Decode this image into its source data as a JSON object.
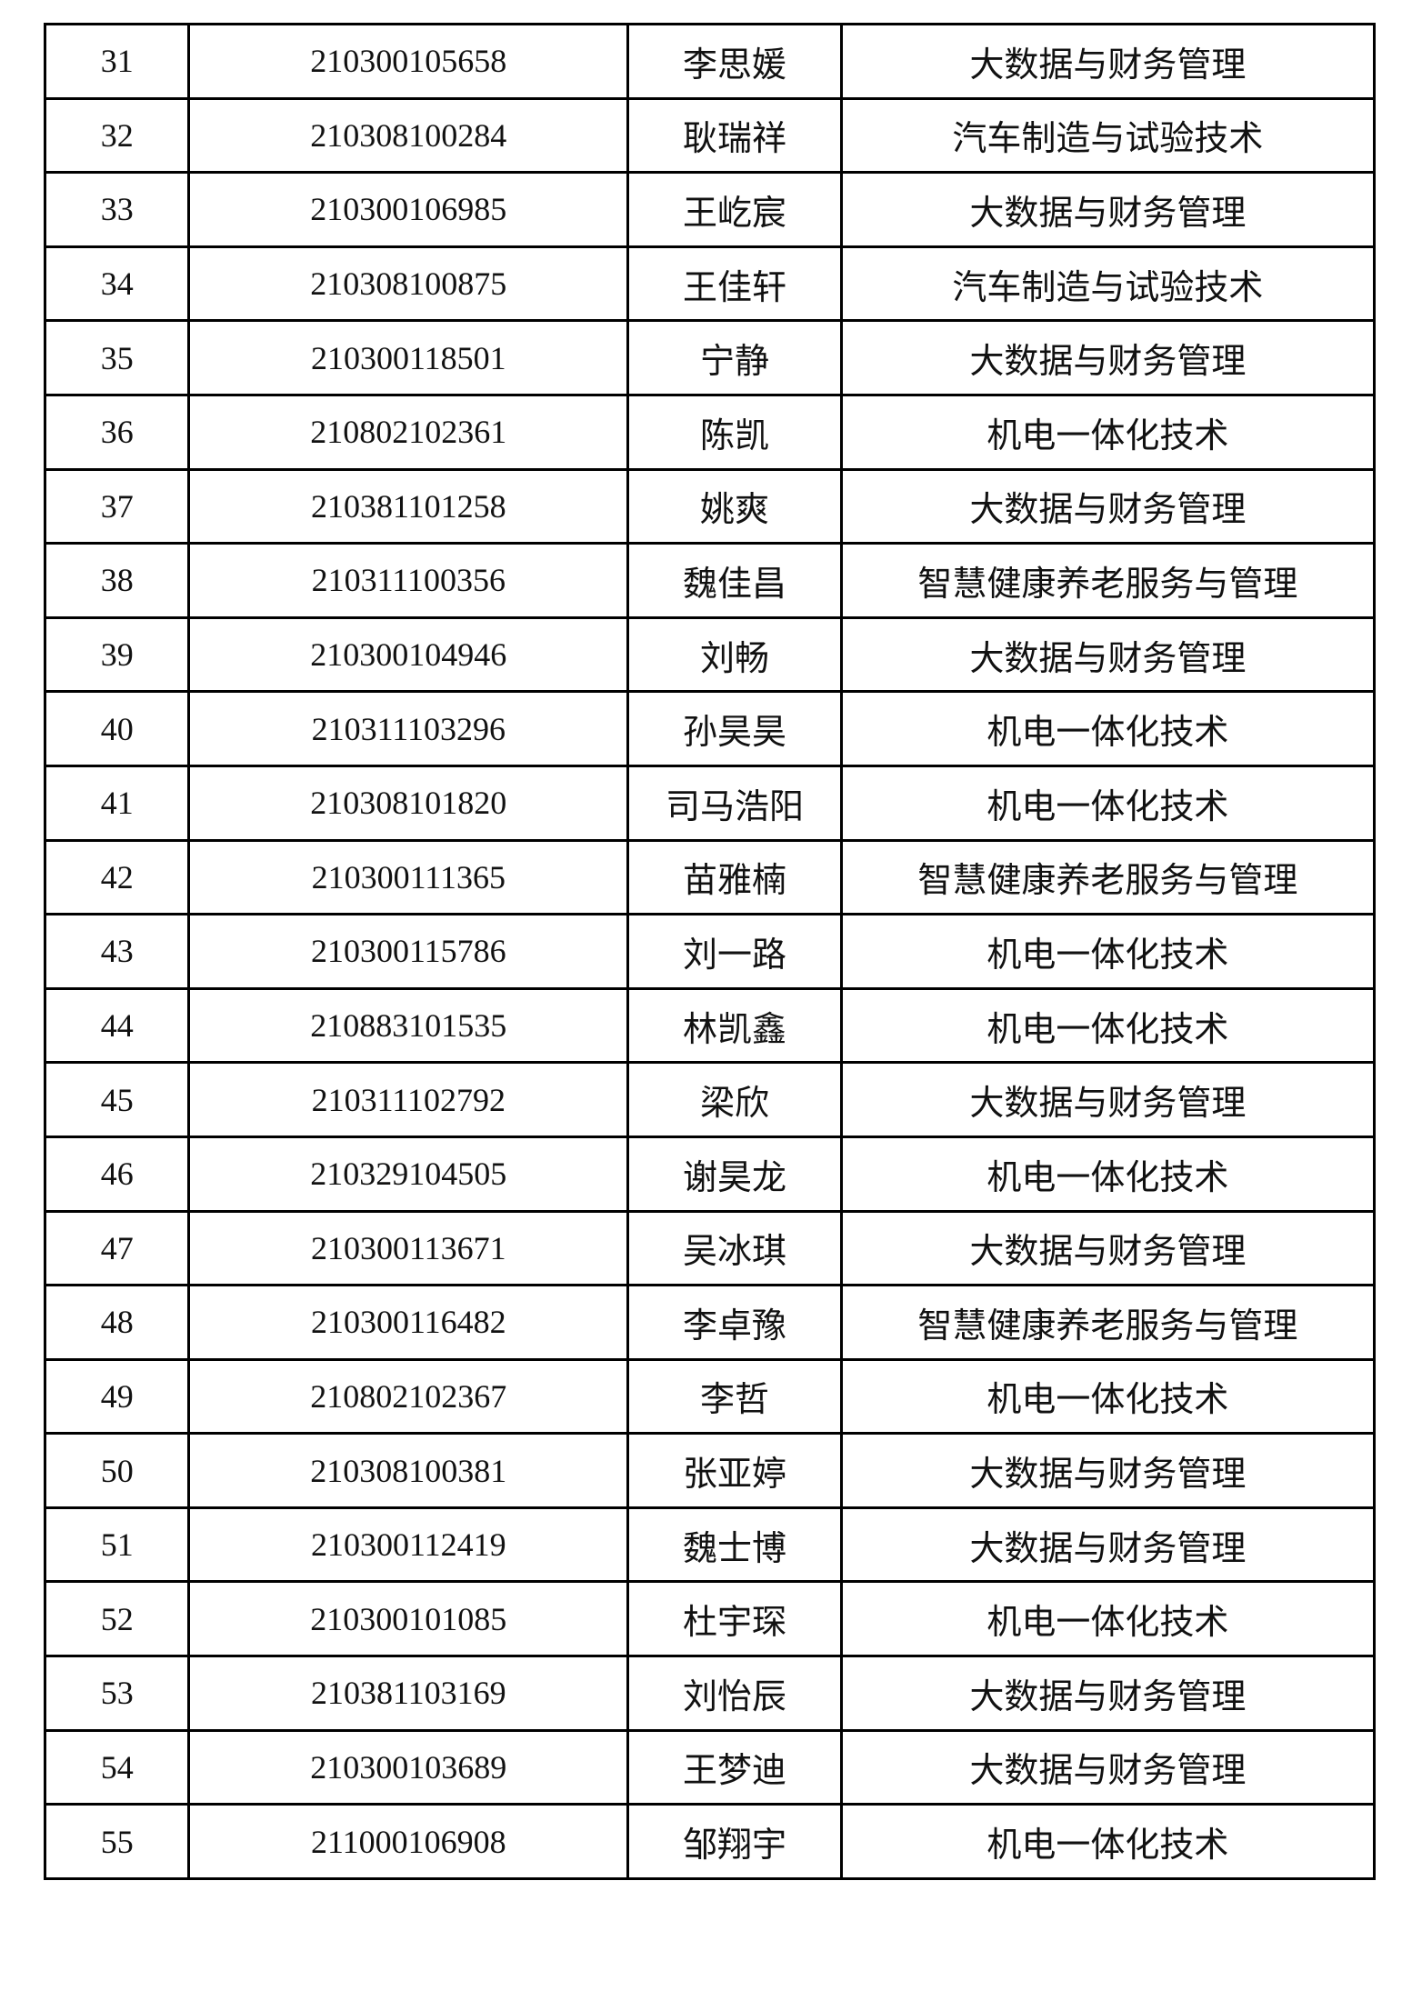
{
  "table": {
    "rows": [
      [
        "31",
        "210300105658",
        "李思媛",
        "大数据与财务管理"
      ],
      [
        "32",
        "210308100284",
        "耿瑞祥",
        "汽车制造与试验技术"
      ],
      [
        "33",
        "210300106985",
        "王屹宸",
        "大数据与财务管理"
      ],
      [
        "34",
        "210308100875",
        "王佳轩",
        "汽车制造与试验技术"
      ],
      [
        "35",
        "210300118501",
        "宁静",
        "大数据与财务管理"
      ],
      [
        "36",
        "210802102361",
        "陈凯",
        "机电一体化技术"
      ],
      [
        "37",
        "210381101258",
        "姚爽",
        "大数据与财务管理"
      ],
      [
        "38",
        "210311100356",
        "魏佳昌",
        "智慧健康养老服务与管理"
      ],
      [
        "39",
        "210300104946",
        "刘畅",
        "大数据与财务管理"
      ],
      [
        "40",
        "210311103296",
        "孙昊昊",
        "机电一体化技术"
      ],
      [
        "41",
        "210308101820",
        "司马浩阳",
        "机电一体化技术"
      ],
      [
        "42",
        "210300111365",
        "苗雅楠",
        "智慧健康养老服务与管理"
      ],
      [
        "43",
        "210300115786",
        "刘一路",
        "机电一体化技术"
      ],
      [
        "44",
        "210883101535",
        "林凯鑫",
        "机电一体化技术"
      ],
      [
        "45",
        "210311102792",
        "梁欣",
        "大数据与财务管理"
      ],
      [
        "46",
        "210329104505",
        "谢昊龙",
        "机电一体化技术"
      ],
      [
        "47",
        "210300113671",
        "吴冰琪",
        "大数据与财务管理"
      ],
      [
        "48",
        "210300116482",
        "李卓豫",
        "智慧健康养老服务与管理"
      ],
      [
        "49",
        "210802102367",
        "李哲",
        "机电一体化技术"
      ],
      [
        "50",
        "210308100381",
        "张亚婷",
        "大数据与财务管理"
      ],
      [
        "51",
        "210300112419",
        "魏士博",
        "大数据与财务管理"
      ],
      [
        "52",
        "210300101085",
        "杜宇琛",
        "机电一体化技术"
      ],
      [
        "53",
        "210381103169",
        "刘怡辰",
        "大数据与财务管理"
      ],
      [
        "54",
        "210300103689",
        "王梦迪",
        "大数据与财务管理"
      ],
      [
        "55",
        "211000106908",
        "邹翔宇",
        "机电一体化技术"
      ]
    ]
  }
}
